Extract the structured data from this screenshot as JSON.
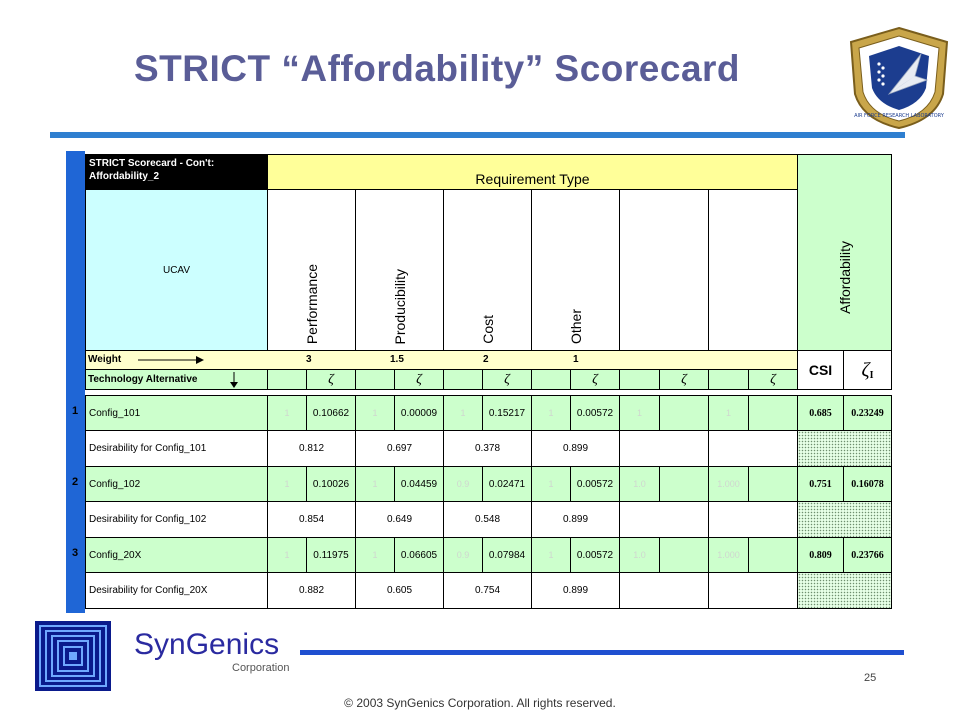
{
  "slide": {
    "title": "STRICT “Affordability” Scorecard",
    "page_number": "25",
    "copyright": "© 2003 SynGenics Corporation. All rights reserved.",
    "brand": "SynGenics",
    "brand_sub": "Corporation",
    "badge_icon": "air-force-research-laboratory-shield-icon",
    "badge_text": "AIR FORCE RESEARCH LABORATORY"
  },
  "scorecard": {
    "header_title": "STRICT Scorecard - Con't:",
    "header_sub": "Affordability_2",
    "requirement_type": "Requirement Type",
    "project": "UCAV",
    "requirements": [
      "Performance",
      "Producibility",
      "Cost",
      "Other"
    ],
    "affordability_label": "Affordability",
    "weight_label": "Weight",
    "weights": [
      "3",
      "1.5",
      "2",
      "1"
    ],
    "csi_label": "CSI",
    "zeta_i_label": "ζ",
    "zeta_i_sub": "I",
    "tech_label": "Technology Alternative",
    "zeta": "ζ",
    "configs": [
      {
        "num": "1",
        "name": "Config_101",
        "faint": [
          "1",
          "1",
          "1",
          "1",
          "1",
          "1"
        ],
        "zetas": [
          "0.10662",
          "0.00009",
          "0.15217",
          "0.00572"
        ],
        "csi": "0.685",
        "zeta_i": "0.23249",
        "desir_label": "Desirability for Config_101",
        "desir": [
          "0.812",
          "0.697",
          "0.378",
          "0.899"
        ]
      },
      {
        "num": "2",
        "name": "Config_102",
        "faint": [
          "1",
          "1",
          "0.9",
          "1",
          "1.0",
          "1.000"
        ],
        "zetas": [
          "0.10026",
          "0.04459",
          "0.02471",
          "0.00572"
        ],
        "csi": "0.751",
        "zeta_i": "0.16078",
        "desir_label": "Desirability for Config_102",
        "desir": [
          "0.854",
          "0.649",
          "0.548",
          "0.899"
        ]
      },
      {
        "num": "3",
        "name": "Config_20X",
        "faint": [
          "1",
          "1",
          "0.9",
          "1",
          "1.0",
          "1.000"
        ],
        "zetas": [
          "0.11975",
          "0.06605",
          "0.07984",
          "0.00572"
        ],
        "csi": "0.809",
        "zeta_i": "0.23766",
        "desir_label": "Desirability for Config_20X",
        "desir": [
          "0.882",
          "0.605",
          "0.754",
          "0.899"
        ]
      }
    ]
  },
  "colors": {
    "title": "#5a5d97",
    "rule": "#2f7fd0",
    "sheet_edge": "#1f66d6",
    "yellow": "#ffff99",
    "green": "#ccffcc",
    "blue": "#ccffff"
  }
}
